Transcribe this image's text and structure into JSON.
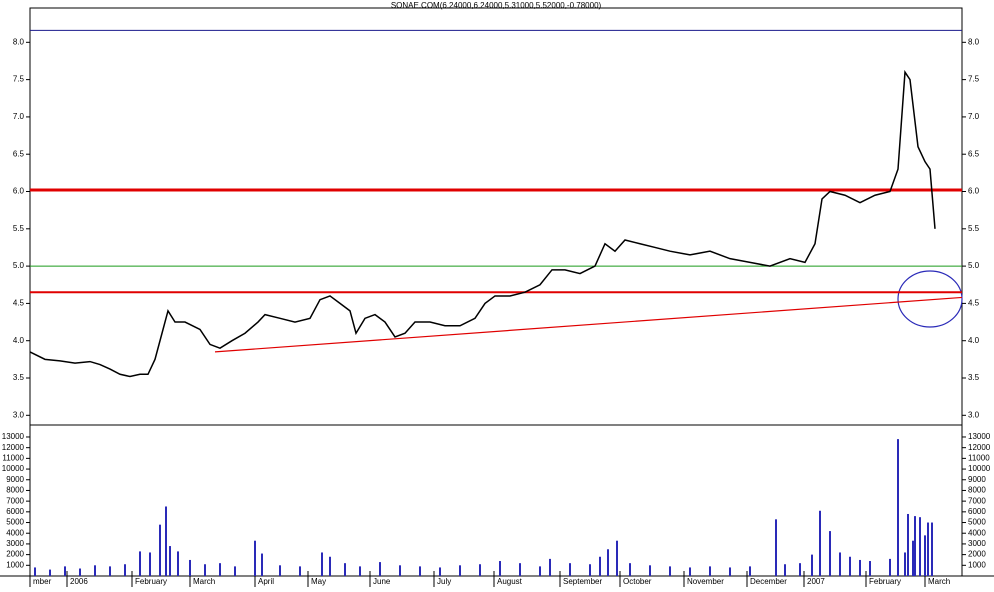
{
  "chart_data": [
    {
      "type": "line",
      "title": "SONAE.COM(6.24000,6.24000,5.31000,5.52000,-0.78000)",
      "xlim": [
        0,
        93.2
      ],
      "ylim": [
        2.87,
        8.46
      ],
      "yticks": [
        {
          "value": 3,
          "label": "3.0"
        },
        {
          "value": 3.5,
          "label": "3.5"
        },
        {
          "value": 4,
          "label": "4.0"
        },
        {
          "value": 4.5,
          "label": "4.5"
        },
        {
          "value": 5,
          "label": "5.0"
        },
        {
          "value": 5.5,
          "label": "5.5"
        },
        {
          "value": 6,
          "label": "6.0"
        },
        {
          "value": 6.5,
          "label": "6.5"
        },
        {
          "value": 7,
          "label": "7.0"
        },
        {
          "value": 7.5,
          "label": "7.5"
        },
        {
          "value": 8,
          "label": "8.0"
        }
      ],
      "series": [
        {
          "color": "#000000",
          "x": [
            0,
            1.5,
            3,
            4.5,
            6,
            7,
            8,
            9,
            10,
            11,
            11.8,
            12.5,
            13.2,
            13.8,
            14.5,
            15.5,
            17,
            18,
            19,
            20.2,
            21.5,
            22.8,
            23.5,
            25,
            26.5,
            28,
            29,
            30,
            31,
            32,
            32.6,
            33.5,
            34.5,
            35.5,
            36.5,
            37.5,
            38.5,
            40,
            41.5,
            43,
            44.5,
            45.5,
            46.5,
            48,
            49.5,
            51,
            52.2,
            53.5,
            55,
            56.5,
            57.5,
            58.5,
            59.5,
            61,
            62.5,
            64,
            66,
            68,
            70,
            72,
            74,
            76,
            77.5,
            78.5,
            79.2,
            80,
            81.5,
            83,
            84.5,
            86,
            86.8,
            87.5,
            88,
            88.8,
            89.5,
            90,
            90.5
          ],
          "values": [
            3.85,
            3.75,
            3.73,
            3.7,
            3.72,
            3.68,
            3.62,
            3.55,
            3.52,
            3.55,
            3.55,
            3.75,
            4.1,
            4.4,
            4.25,
            4.25,
            4.15,
            3.95,
            3.9,
            4.0,
            4.1,
            4.25,
            4.35,
            4.3,
            4.25,
            4.3,
            4.55,
            4.6,
            4.5,
            4.4,
            4.1,
            4.3,
            4.35,
            4.25,
            4.05,
            4.1,
            4.25,
            4.25,
            4.2,
            4.2,
            4.3,
            4.5,
            4.6,
            4.6,
            4.65,
            4.75,
            4.95,
            4.95,
            4.9,
            5.0,
            5.3,
            5.2,
            5.35,
            5.3,
            5.25,
            5.2,
            5.15,
            5.2,
            5.1,
            5.05,
            5.0,
            5.1,
            5.05,
            5.3,
            5.9,
            6.0,
            5.95,
            5.85,
            5.95,
            6.0,
            6.3,
            7.6,
            7.5,
            6.6,
            6.4,
            6.3,
            5.5
          ]
        }
      ],
      "levels": [
        {
          "value": 8.16,
          "color": "#1a1a8c",
          "width": 1
        },
        {
          "value": 6.02,
          "color": "#e00000",
          "width": 3
        },
        {
          "value": 5.0,
          "color": "#1a9a1a",
          "width": 1
        },
        {
          "value": 4.65,
          "color": "#e00000",
          "width": 2
        }
      ],
      "trendline": {
        "x": [
          18.5,
          93.2
        ],
        "y": [
          3.85,
          4.58
        ],
        "color": "#e00000"
      }
    },
    {
      "type": "bar",
      "xlim": [
        0,
        93.2
      ],
      "ylim": [
        0,
        14120
      ],
      "color": "#2a2ab8",
      "yticks": [
        {
          "value": 1000,
          "label": "1000"
        },
        2000,
        3000,
        4000,
        5000,
        6000,
        7000,
        8000,
        9000,
        10000,
        11000,
        12000,
        13000
      ],
      "xticks": [
        {
          "value": 0,
          "label": "mber"
        },
        {
          "value": 3.7,
          "label": "2006"
        },
        {
          "value": 10.2,
          "label": "February"
        },
        {
          "value": 16,
          "label": "March"
        },
        {
          "value": 22.5,
          "label": "April"
        },
        {
          "value": 27.8,
          "label": "May"
        },
        {
          "value": 34,
          "label": "June"
        },
        {
          "value": 40.4,
          "label": "July"
        },
        {
          "value": 46.4,
          "label": "August"
        },
        {
          "value": 53,
          "label": "September"
        },
        {
          "value": 59,
          "label": "October"
        },
        {
          "value": 65.4,
          "label": "November"
        },
        {
          "value": 71.7,
          "label": "December"
        },
        {
          "value": 77.4,
          "label": "2007"
        },
        {
          "value": 83.6,
          "label": "February"
        },
        {
          "value": 89.5,
          "label": "March"
        }
      ],
      "x": [
        0.5,
        2,
        3.5,
        5,
        6.5,
        8,
        9.5,
        11,
        12,
        13,
        13.6,
        14,
        14.8,
        16,
        17.5,
        19,
        20.5,
        22.5,
        23.2,
        25,
        27,
        29.2,
        30,
        31.5,
        33,
        35,
        37,
        39,
        41,
        43,
        45,
        47,
        49,
        51,
        52,
        54,
        56,
        57,
        57.8,
        58.7,
        60,
        62,
        64,
        66,
        68,
        70,
        72,
        74.6,
        75.5,
        77,
        78.2,
        79,
        80,
        81,
        82,
        83,
        84,
        86,
        86.8,
        87.5,
        87.8,
        88.3,
        88.5,
        89,
        89.5,
        89.8,
        90.2
      ],
      "values": [
        800,
        600,
        900,
        700,
        1000,
        900,
        1100,
        2300,
        2200,
        4800,
        6500,
        2800,
        2300,
        1500,
        1100,
        1200,
        900,
        3300,
        2100,
        1000,
        900,
        2200,
        1800,
        1200,
        900,
        1300,
        1000,
        900,
        800,
        1000,
        1100,
        1400,
        1200,
        900,
        1600,
        1200,
        1100,
        1800,
        2500,
        3300,
        1200,
        1000,
        900,
        800,
        900,
        800,
        900,
        5300,
        1100,
        1200,
        2000,
        6100,
        4200,
        2200,
        1800,
        1500,
        1400,
        1600,
        12800,
        2200,
        5800,
        3300,
        5600,
        5500,
        3800,
        5000,
        5000
      ]
    }
  ]
}
